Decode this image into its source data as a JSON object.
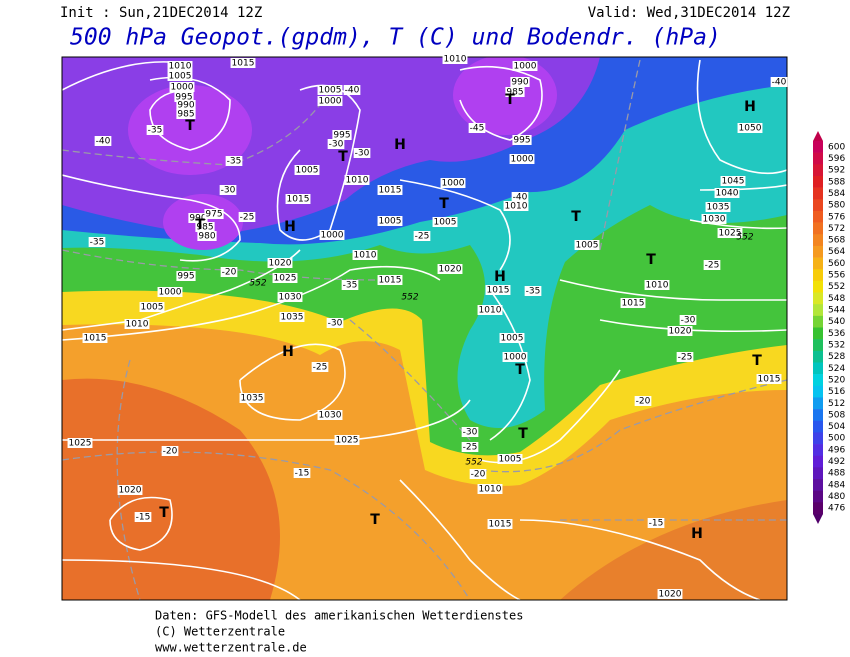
{
  "header": {
    "init": "Init : Sun,21DEC2014 12Z",
    "valid": "Valid: Wed,31DEC2014 12Z",
    "title": "500 hPa Geopot.(gpdm), T (C) und Bodendr. (hPa)"
  },
  "map": {
    "pressure_labels": [
      "1010",
      "1005",
      "1000",
      "995",
      "990",
      "985",
      "1015",
      "1010",
      "1000",
      "990",
      "985",
      "1005",
      "1000",
      "995",
      "1005",
      "1010",
      "1015",
      "1015",
      "1005",
      "1000",
      "1010",
      "990",
      "985",
      "980",
      "975",
      "995",
      "1000",
      "1005",
      "1010",
      "1015",
      "1020",
      "1025",
      "1030",
      "1035",
      "1035",
      "1030",
      "1025",
      "1025",
      "1020",
      "1020",
      "1015",
      "1010",
      "1005",
      "1000",
      "1005",
      "1010",
      "1015",
      "1020",
      "995",
      "1000",
      "1000",
      "1010",
      "1005",
      "1005",
      "1010",
      "1015",
      "1020",
      "1015",
      "1045",
      "1040",
      "1035",
      "1030",
      "1025",
      "1050",
      "1015"
    ],
    "centers": [
      "H",
      "T",
      "T",
      "T",
      "T",
      "H",
      "T",
      "H",
      "T",
      "T",
      "H",
      "H",
      "T",
      "T",
      "T",
      "T",
      "H",
      "T"
    ],
    "temperature_labels": [
      "-40",
      "-35",
      "-35",
      "-30",
      "-25",
      "-35",
      "-20",
      "-40",
      "-30",
      "-30",
      "-45",
      "-40",
      "-25",
      "-35",
      "-30",
      "-25",
      "-35",
      "-30",
      "-25",
      "-20",
      "-30",
      "-25",
      "-20",
      "-15",
      "-20",
      "-15",
      "-15",
      "-25",
      "-40"
    ],
    "geopotential_labels": [
      "552",
      "552",
      "552",
      "552"
    ]
  },
  "colorbar": {
    "ticks": [
      600,
      596,
      592,
      588,
      584,
      580,
      576,
      572,
      568,
      564,
      560,
      556,
      552,
      548,
      544,
      540,
      536,
      532,
      528,
      524,
      520,
      516,
      512,
      508,
      504,
      500,
      496,
      492,
      488,
      484,
      480,
      476
    ]
  },
  "footer": {
    "source": "Daten: GFS-Modell des amerikanischen Wetterdienstes",
    "copyright": "(C) Wetterzentrale",
    "url": "www.wetterzentrale.de"
  }
}
